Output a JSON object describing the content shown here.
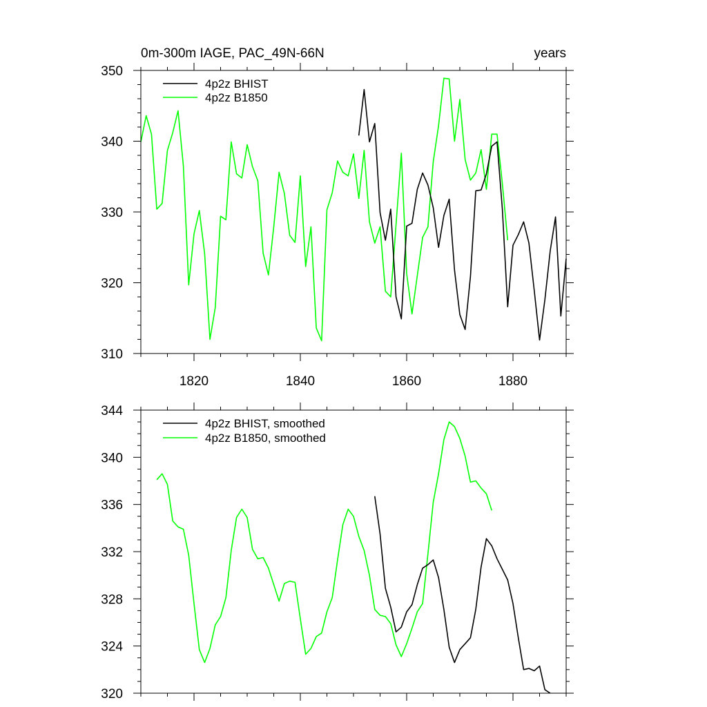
{
  "chart_data": [
    {
      "type": "line",
      "title_left": "0m-300m IAGE, PAC_49N-66N",
      "title_right": "years",
      "xlim": [
        1810,
        1890
      ],
      "ylim": [
        310,
        350
      ],
      "yticks": [
        310,
        320,
        330,
        340,
        350
      ],
      "ytick_labels": [
        "310",
        "320",
        "330",
        "340",
        "350"
      ],
      "xticks": [
        1820,
        1840,
        1860,
        1880
      ],
      "xtick_labels": [
        "1820",
        "1840",
        "1860",
        "1880"
      ],
      "colors": {
        "bhist": "#000000",
        "b1850": "#00ff00"
      },
      "series": [
        {
          "key": "bhist",
          "name": "4p2z BHIST",
          "x": [
            1851,
            1852,
            1853,
            1854,
            1855,
            1856,
            1857,
            1858,
            1859,
            1860,
            1861,
            1862,
            1863,
            1864,
            1865,
            1866,
            1867,
            1868,
            1869,
            1870,
            1871,
            1872,
            1873,
            1874,
            1875,
            1876,
            1877,
            1878,
            1879,
            1880,
            1881,
            1882,
            1883,
            1884,
            1885,
            1886,
            1887,
            1888,
            1889,
            1890
          ],
          "values": [
            340.8,
            347.3,
            339.9,
            342.5,
            329.9,
            326.0,
            330.4,
            318.0,
            314.9,
            328.0,
            328.4,
            333.2,
            335.5,
            333.8,
            330.6,
            325.0,
            329.5,
            331.8,
            321.8,
            315.5,
            313.4,
            320.9,
            333.0,
            333.1,
            335.4,
            339.3,
            339.9,
            330.4,
            316.6,
            325.3,
            326.8,
            328.6,
            325.6,
            318.9,
            311.9,
            317.6,
            324.5,
            329.3,
            315.3,
            323.4
          ]
        },
        {
          "key": "b1850",
          "name": "4p2z B1850",
          "x": [
            1810,
            1811,
            1812,
            1813,
            1814,
            1815,
            1816,
            1817,
            1818,
            1819,
            1820,
            1821,
            1822,
            1823,
            1824,
            1825,
            1826,
            1827,
            1828,
            1829,
            1830,
            1831,
            1832,
            1833,
            1834,
            1835,
            1836,
            1837,
            1838,
            1839,
            1840,
            1841,
            1842,
            1843,
            1844,
            1845,
            1846,
            1847,
            1848,
            1849,
            1850,
            1851,
            1852,
            1853,
            1854,
            1855,
            1856,
            1857,
            1858,
            1859,
            1860,
            1861,
            1862,
            1863,
            1864,
            1865,
            1866,
            1867,
            1868,
            1869,
            1870,
            1871,
            1872,
            1873,
            1874,
            1875,
            1876,
            1877,
            1878,
            1879
          ],
          "values": [
            339.9,
            343.6,
            341.0,
            330.4,
            331.2,
            338.7,
            341.2,
            344.3,
            336.5,
            319.7,
            326.9,
            330.2,
            324.1,
            312.0,
            316.5,
            329.4,
            328.9,
            339.9,
            335.4,
            334.8,
            339.5,
            336.4,
            334.4,
            324.2,
            321.1,
            327.9,
            335.6,
            332.6,
            326.7,
            325.7,
            335.1,
            322.3,
            327.9,
            313.6,
            311.8,
            330.3,
            332.7,
            337.2,
            335.6,
            335.1,
            338.2,
            331.9,
            338.7,
            328.6,
            325.6,
            327.9,
            318.8,
            318.0,
            328.2,
            338.3,
            321.3,
            315.6,
            321.0,
            326.4,
            327.9,
            337.1,
            342.2,
            348.9,
            348.8,
            340.0,
            345.9,
            337.4,
            334.5,
            335.5,
            338.8,
            333.2,
            341.0,
            341.0,
            334.0,
            326.0
          ]
        }
      ]
    },
    {
      "type": "line",
      "xlim": [
        1810,
        1890
      ],
      "ylim": [
        320,
        344
      ],
      "yticks": [
        320,
        324,
        328,
        332,
        336,
        340,
        344
      ],
      "ytick_labels": [
        "320",
        "324",
        "328",
        "332",
        "336",
        "340",
        "344"
      ],
      "xticks": [
        1820,
        1840,
        1860,
        1880
      ],
      "colors": {
        "bhist": "#000000",
        "b1850": "#00ff00"
      },
      "series": [
        {
          "key": "bhist",
          "name": "4p2z BHIST, smoothed",
          "x": [
            1854,
            1855,
            1856,
            1857,
            1858,
            1859,
            1860,
            1861,
            1862,
            1863,
            1864,
            1865,
            1866,
            1867,
            1868,
            1869,
            1870,
            1871,
            1872,
            1873,
            1874,
            1875,
            1876,
            1877,
            1878,
            1879,
            1880,
            1881,
            1882,
            1883,
            1884,
            1885,
            1886,
            1887
          ],
          "values": [
            336.7,
            333.5,
            328.9,
            327.3,
            325.2,
            325.6,
            326.9,
            327.5,
            329.2,
            330.6,
            330.9,
            331.3,
            329.8,
            327.1,
            323.9,
            322.6,
            323.7,
            324.2,
            324.7,
            327.1,
            330.7,
            333.1,
            332.5,
            331.4,
            330.5,
            329.6,
            327.6,
            324.7,
            322.0,
            322.1,
            321.9,
            322.3,
            320.3,
            320.0
          ]
        },
        {
          "key": "b1850",
          "name": "4p2z B1850, smoothed",
          "x": [
            1813,
            1814,
            1815,
            1816,
            1817,
            1818,
            1819,
            1820,
            1821,
            1822,
            1823,
            1824,
            1825,
            1826,
            1827,
            1828,
            1829,
            1830,
            1831,
            1832,
            1833,
            1834,
            1835,
            1836,
            1837,
            1838,
            1839,
            1840,
            1841,
            1842,
            1843,
            1844,
            1845,
            1846,
            1847,
            1848,
            1849,
            1850,
            1851,
            1852,
            1853,
            1854,
            1855,
            1856,
            1857,
            1858,
            1859,
            1860,
            1861,
            1862,
            1863,
            1864,
            1865,
            1866,
            1867,
            1868,
            1869,
            1870,
            1871,
            1872,
            1873,
            1874,
            1875,
            1876
          ],
          "values": [
            338.1,
            338.6,
            337.7,
            334.6,
            334.1,
            333.9,
            331.7,
            327.6,
            323.7,
            322.6,
            323.8,
            325.8,
            326.5,
            328.1,
            332.1,
            334.9,
            335.6,
            334.9,
            332.2,
            331.4,
            331.5,
            330.6,
            329.2,
            327.8,
            329.3,
            329.5,
            329.4,
            326.3,
            323.3,
            323.8,
            324.8,
            325.1,
            326.9,
            328.1,
            331.3,
            334.3,
            335.6,
            335.0,
            333.3,
            332.1,
            330.0,
            327.1,
            326.6,
            326.5,
            325.9,
            324.1,
            323.1,
            324.2,
            325.5,
            326.9,
            327.6,
            331.8,
            336.2,
            338.6,
            341.5,
            343.0,
            342.6,
            341.6,
            340.1,
            337.9,
            338.0,
            337.4,
            336.9,
            335.5
          ]
        }
      ]
    }
  ]
}
